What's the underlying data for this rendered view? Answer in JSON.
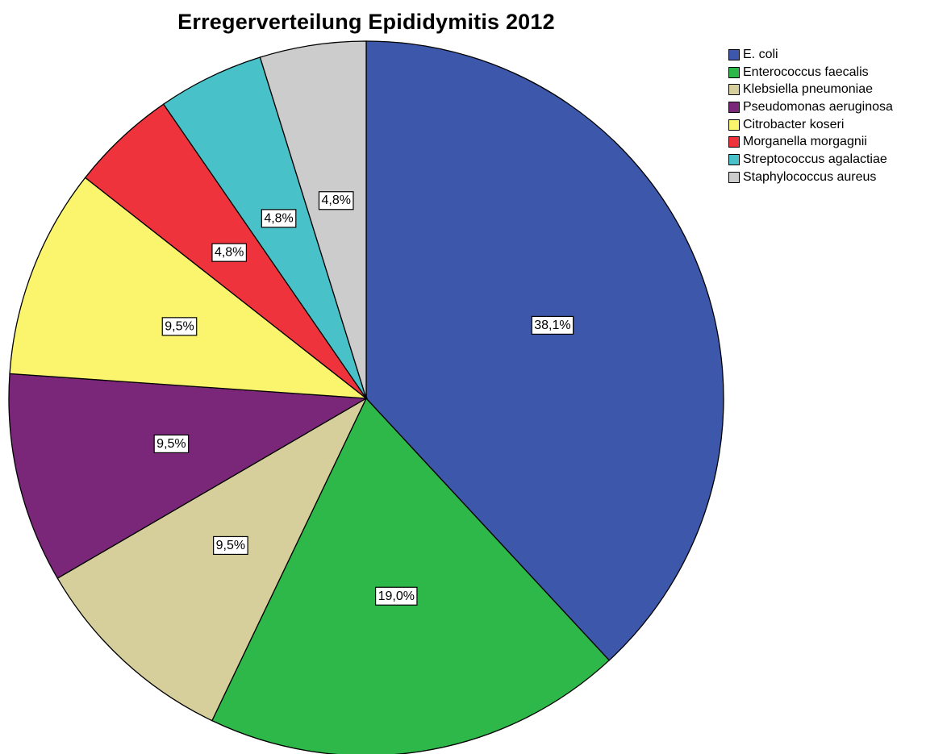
{
  "chart_data": {
    "type": "pie",
    "title": "Erregerverteilung Epididymitis 2012",
    "start_angle_deg": 0,
    "direction": "clockwise",
    "legend_placement": "top-right",
    "slices": [
      {
        "name": "E. coli",
        "value": 38.1,
        "label": "38,1%",
        "color": "#3d58aa"
      },
      {
        "name": "Enterococcus faecalis",
        "value": 19.0,
        "label": "19,0%",
        "color": "#2fb84a"
      },
      {
        "name": "Klebsiella pneumoniae",
        "value": 9.5,
        "label": "9,5%",
        "color": "#d6cf9c"
      },
      {
        "name": "Pseudomonas aeruginosa",
        "value": 9.5,
        "label": "9,5%",
        "color": "#7b2779"
      },
      {
        "name": "Citrobacter koseri",
        "value": 9.5,
        "label": "9,5%",
        "color": "#fbf56d"
      },
      {
        "name": "Morganella morgagnii",
        "value": 4.8,
        "label": "4,8%",
        "color": "#ef333d"
      },
      {
        "name": "Streptococcus agalactiae",
        "value": 4.8,
        "label": "4,8%",
        "color": "#48c2c8"
      },
      {
        "name": "Staphylococcus aureus",
        "value": 4.8,
        "label": "4,8%",
        "color": "#cccccc"
      }
    ]
  }
}
